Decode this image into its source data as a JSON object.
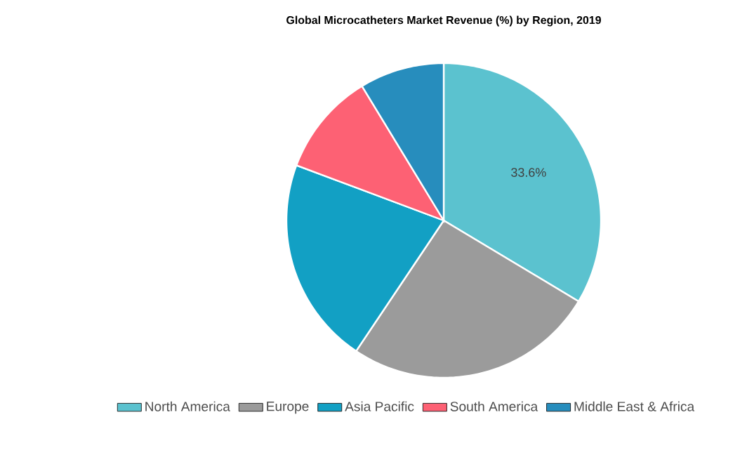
{
  "chart_data": {
    "type": "pie",
    "title": "Global Microcatheters Market Revenue (%) by Region, 2019",
    "categories": [
      "North America",
      "Europe",
      "Asia Pacific",
      "South America",
      "Middle East & Africa"
    ],
    "values": [
      33.6,
      25.8,
      21.3,
      10.6,
      8.7
    ],
    "colors": [
      "#5bc2cf",
      "#9b9b9b",
      "#12a0c4",
      "#fd6174",
      "#278dbd"
    ],
    "value_labels": [
      "33.6%",
      null,
      null,
      null,
      null
    ],
    "legend": "bottom"
  }
}
